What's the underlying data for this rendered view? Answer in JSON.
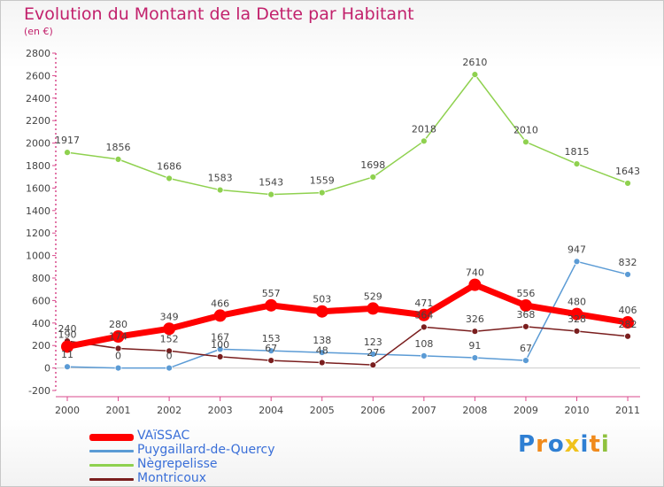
{
  "chart_data": {
    "type": "line",
    "title": "Evolution du Montant de la Dette par Habitant",
    "subtitle": "(en €)",
    "xlabel": "",
    "ylabel": "",
    "categories": [
      "2000",
      "2001",
      "2002",
      "2003",
      "2004",
      "2005",
      "2006",
      "2007",
      "2008",
      "2009",
      "2010",
      "2011"
    ],
    "ylim": [
      -200,
      2800
    ],
    "y_ticks": [
      -200,
      0,
      200,
      400,
      600,
      800,
      1000,
      1200,
      1400,
      1600,
      1800,
      2000,
      2200,
      2400,
      2600,
      2800
    ],
    "grid": false,
    "legend_position": "bottom-left",
    "series": [
      {
        "name": "VAïSSAC",
        "color": "#ff0000",
        "values": [
          190,
          280,
          349,
          466,
          557,
          503,
          529,
          471,
          740,
          556,
          480,
          406
        ],
        "labels": [
          "190",
          "280",
          "349",
          "466",
          "557",
          "503",
          "529",
          "471",
          "740",
          "556",
          "480",
          "406"
        ]
      },
      {
        "name": "Puygaillard-de-Quercy",
        "color": "#5b9bd5",
        "values": [
          11,
          0,
          0,
          167,
          153,
          138,
          123,
          108,
          91,
          67,
          947,
          832
        ],
        "labels": [
          "11",
          "0",
          "0",
          "167",
          "153",
          "138",
          "123",
          "108",
          "91",
          "67",
          "947",
          "832"
        ]
      },
      {
        "name": "Nègrepelisse",
        "color": "#8fd14f",
        "values": [
          1917,
          1856,
          1686,
          1583,
          1543,
          1559,
          1698,
          2018,
          2610,
          2010,
          1815,
          1643
        ],
        "labels": [
          "1917",
          "1856",
          "1686",
          "1583",
          "1543",
          "1559",
          "1698",
          "2018",
          "2610",
          "2010",
          "1815",
          "1643"
        ]
      },
      {
        "name": "Montricoux",
        "color": "#7a1e1e",
        "values": [
          240,
          174,
          152,
          100,
          67,
          48,
          27,
          364,
          326,
          368,
          328,
          282
        ],
        "labels": [
          "240",
          "174",
          "152",
          "100",
          "67",
          "48",
          "27",
          "364",
          "326",
          "368",
          "328",
          "282"
        ]
      }
    ]
  },
  "legend": {
    "items": [
      {
        "label": "VAïSSAC",
        "color": "#ff0000"
      },
      {
        "label": "Puygaillard-de-Quercy",
        "color": "#5b9bd5"
      },
      {
        "label": "Nègrepelisse",
        "color": "#8fd14f"
      },
      {
        "label": "Montricoux",
        "color": "#7a1e1e"
      }
    ]
  },
  "brand": {
    "text": "Proxiti",
    "letters": [
      {
        "ch": "P",
        "color": "#2f7fd3"
      },
      {
        "ch": "r",
        "color": "#f08a1c"
      },
      {
        "ch": "o",
        "color": "#2f7fd3"
      },
      {
        "ch": "x",
        "color": "#f0c21c"
      },
      {
        "ch": "i",
        "color": "#2f7fd3"
      },
      {
        "ch": "t",
        "color": "#f08a1c"
      },
      {
        "ch": "i",
        "color": "#8fc13e"
      }
    ]
  }
}
